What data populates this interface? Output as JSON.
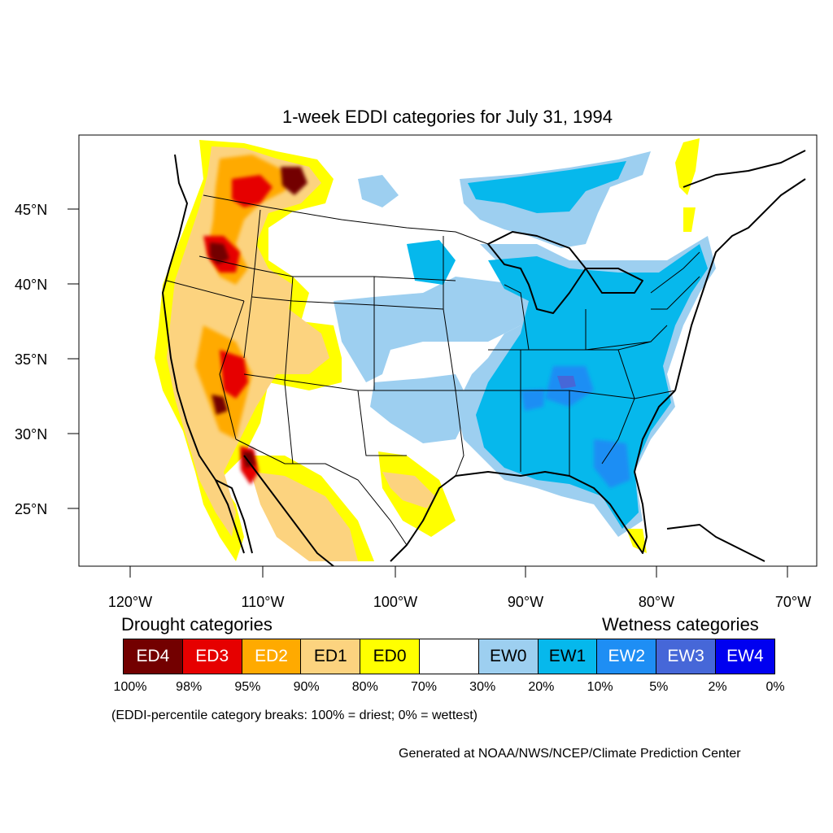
{
  "title": "1-week EDDI categories for July 31, 1994",
  "axes": {
    "lat_ticks": [
      "45°N",
      "40°N",
      "35°N",
      "30°N",
      "25°N"
    ],
    "lon_ticks": [
      "120°W",
      "110°W",
      "100°W",
      "90°W",
      "80°W",
      "70°W"
    ]
  },
  "legend": {
    "drought_heading": "Drought categories",
    "wetness_heading": "Wetness categories",
    "categories": [
      {
        "label": "ED4",
        "color": "#730000",
        "text_color": "#ffffff"
      },
      {
        "label": "ED3",
        "color": "#e60000",
        "text_color": "#ffffff"
      },
      {
        "label": "ED2",
        "color": "#ffaa00",
        "text_color": "#ffffff"
      },
      {
        "label": "ED1",
        "color": "#fcd37f",
        "text_color": "#000000"
      },
      {
        "label": "ED0",
        "color": "#ffff00",
        "text_color": "#000000"
      },
      {
        "label": "",
        "color": "#ffffff",
        "text_color": "#000000"
      },
      {
        "label": "EW0",
        "color": "#9dcff0",
        "text_color": "#000000"
      },
      {
        "label": "EW1",
        "color": "#06b8ec",
        "text_color": "#000000"
      },
      {
        "label": "EW2",
        "color": "#1e8ef4",
        "text_color": "#ffffff"
      },
      {
        "label": "EW3",
        "color": "#4667d8",
        "text_color": "#ffffff"
      },
      {
        "label": "EW4",
        "color": "#0000f0",
        "text_color": "#ffffff"
      }
    ],
    "breaks": [
      "100%",
      "98%",
      "95%",
      "90%",
      "80%",
      "70%",
      "30%",
      "20%",
      "10%",
      "5%",
      "2%",
      "0%"
    ]
  },
  "note": "(EDDI-percentile category breaks: 100% = driest; 0% = wettest)",
  "credit": "Generated at NOAA/NWS/NCEP/Climate Prediction Center"
}
